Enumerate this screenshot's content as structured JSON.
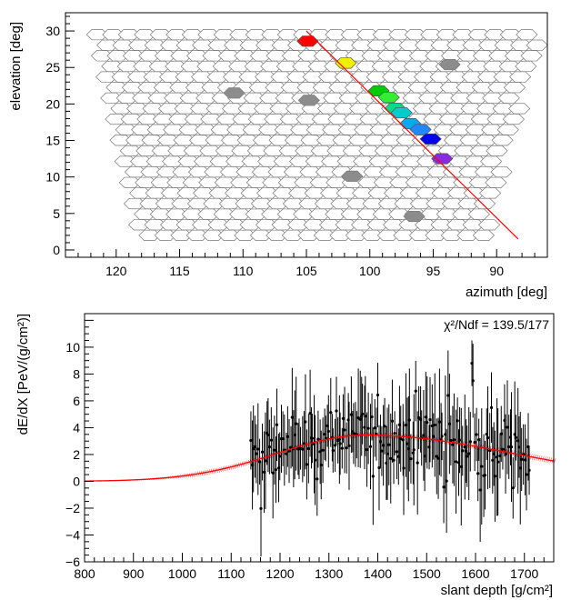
{
  "chart_data": [
    {
      "type": "scatter",
      "xlabel": "azimuth  [deg]",
      "ylabel": "elevation  [deg]",
      "xlim": [
        124,
        86
      ],
      "ylim": [
        -1,
        32.5
      ],
      "x_ticks": [
        120,
        115,
        110,
        105,
        100,
        95,
        90
      ],
      "y_ticks": [
        0,
        5,
        10,
        15,
        20,
        25,
        30
      ],
      "grid": false,
      "camera": {
        "rows": 20,
        "elevation_top": 29.5,
        "elevation_bottom": 2.0,
        "azimuth_left_top": 121.5,
        "azimuth_right_top": 86.5,
        "azimuth_left_bottom": 118.0,
        "azimuth_right_bottom": 90.8,
        "pixel_color": "#ffffff",
        "edge_color": "#7a7a7a"
      },
      "track_line": {
        "from": [
          105.0,
          30.0
        ],
        "to": [
          88.3,
          1.5
        ],
        "color": "#ff0000"
      },
      "triggered_pixels": [
        {
          "azimuth": 104.9,
          "elevation": 28.6,
          "color": "#ff0000"
        },
        {
          "azimuth": 101.9,
          "elevation": 25.6,
          "color": "#f0f000"
        },
        {
          "azimuth": 99.3,
          "elevation": 21.8,
          "color": "#00cc00"
        },
        {
          "azimuth": 98.5,
          "elevation": 20.9,
          "color": "#33ee33"
        },
        {
          "azimuth": 98.0,
          "elevation": 19.4,
          "color": "#00dd88"
        },
        {
          "azimuth": 97.5,
          "elevation": 18.8,
          "color": "#00cccc"
        },
        {
          "azimuth": 96.8,
          "elevation": 17.3,
          "color": "#00aaee"
        },
        {
          "azimuth": 96.0,
          "elevation": 16.5,
          "color": "#2288ff"
        },
        {
          "azimuth": 95.2,
          "elevation": 15.2,
          "color": "#0000ee"
        },
        {
          "azimuth": 94.3,
          "elevation": 12.5,
          "color": "#8a2be2"
        }
      ],
      "dead_pixels": [
        {
          "azimuth": 93.7,
          "elevation": 25.4
        },
        {
          "azimuth": 110.7,
          "elevation": 21.5
        },
        {
          "azimuth": 104.8,
          "elevation": 20.5
        },
        {
          "azimuth": 101.4,
          "elevation": 10.1
        },
        {
          "azimuth": 96.5,
          "elevation": 4.6
        }
      ],
      "dead_color": "#8c8c8c"
    },
    {
      "type": "scatter",
      "xlabel": "slant depth [g/cm²]",
      "ylabel": "dE/dX [PeV/(g/cm²)]",
      "annotation": "χ²/Ndf = 139.5/177",
      "xlim": [
        800,
        1760
      ],
      "ylim": [
        -6,
        12.5
      ],
      "x_ticks": [
        800,
        900,
        1000,
        1100,
        1200,
        1300,
        1400,
        1500,
        1600,
        1700
      ],
      "y_ticks": [
        -6,
        -4,
        -2,
        0,
        2,
        4,
        6,
        8,
        10
      ],
      "grid": false,
      "fit": {
        "type": "Gaisser-Hillas",
        "xmax": 1375,
        "ymax": 3.45,
        "sigma_left": 180,
        "sigma_right": 300,
        "color": "#ff0000",
        "band_halfwidth": 0.2
      },
      "data_points": {
        "description": "approx. 190 measurements between 1140 and 1710 g/cm², mean following the fit, errors 1.5–4.5 PeV/(g/cm²)",
        "x_start": 1140,
        "x_end": 1710,
        "count": 190,
        "point_color": "#000000"
      }
    }
  ]
}
